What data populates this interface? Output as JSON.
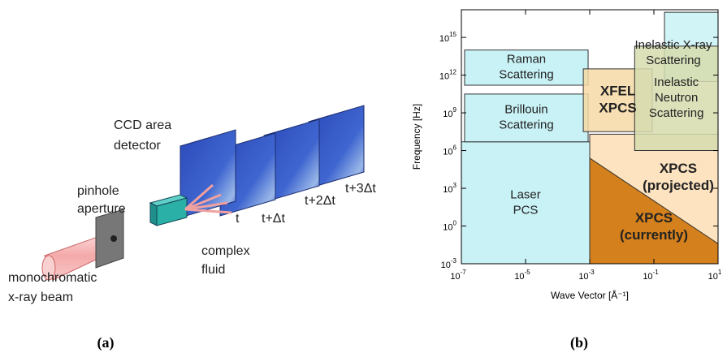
{
  "panel_a": {
    "labels": [
      "CCD area",
      "detector",
      "pinhole",
      "aperture",
      "monochromatic",
      "x-ray beam",
      "complex",
      "fluid",
      "t",
      "t+Δt",
      "t+2Δt",
      "t+3Δt"
    ],
    "caption": "(a)"
  },
  "panel_b": {
    "type": "log-region-map",
    "y_label": "Frequency [Hz]",
    "x_label": "Wave Vector [Å⁻¹]",
    "tick_base": "10",
    "xlim": [
      -7,
      1
    ],
    "ylim": [
      -3,
      17.2
    ],
    "xticks": [
      -7,
      -5,
      -3,
      -1,
      1
    ],
    "yticks": [
      -3,
      0,
      3,
      6,
      9,
      12,
      15
    ],
    "regions": [
      {
        "lines": [
          "Laser",
          "PCS"
        ],
        "bold": false,
        "color": "#c9f2f6",
        "points": [
          [
            -7,
            -3
          ],
          [
            -3,
            -3
          ],
          [
            -3,
            6.7
          ],
          [
            -7,
            6.7
          ]
        ]
      },
      {
        "lines": [
          "XPCS",
          "(projected)"
        ],
        "bold": true,
        "color": "#fde3c0",
        "points": [
          [
            -3,
            -3
          ],
          [
            1,
            -3
          ],
          [
            1,
            7.3
          ],
          [
            -3,
            7.3
          ]
        ]
      },
      {
        "lines": [
          "XPCS",
          "(currently)"
        ],
        "bold": true,
        "color": "#d4801c",
        "points": [
          [
            -3,
            -3
          ],
          [
            1,
            -3
          ],
          [
            1,
            -1.4
          ],
          [
            -3,
            5.4
          ]
        ]
      },
      {
        "lines": [
          "Raman",
          "Scattering"
        ],
        "bold": false,
        "color": "#c9f2f6",
        "points": [
          [
            -6.9,
            11.2
          ],
          [
            -3.05,
            11.2
          ],
          [
            -3.05,
            14
          ],
          [
            -6.9,
            14
          ]
        ]
      },
      {
        "lines": [
          "Brillouin",
          "Scattering"
        ],
        "bold": false,
        "color": "#c9f2f6",
        "points": [
          [
            -6.9,
            6.7
          ],
          [
            -3.05,
            6.7
          ],
          [
            -3.05,
            10.5
          ],
          [
            -6.9,
            10.5
          ]
        ]
      },
      {
        "lines": [
          "XFEL",
          "XPCS"
        ],
        "bold": true,
        "color": "#f6d9a6",
        "points": [
          [
            -3.2,
            7.5
          ],
          [
            -1.05,
            7.5
          ],
          [
            -1.05,
            12.5
          ],
          [
            -3.2,
            12.5
          ]
        ]
      },
      {
        "lines": [
          "Inelastic X-ray",
          "Scattering"
        ],
        "bold": false,
        "color": "#c9f2f6",
        "points": [
          [
            -0.67,
            11.5
          ],
          [
            1,
            11.5
          ],
          [
            1,
            17
          ],
          [
            -0.67,
            17
          ]
        ]
      },
      {
        "lines": [
          "Inelastic",
          "Neutron",
          "Scattering"
        ],
        "bold": false,
        "color": "#d6dcae",
        "points": [
          [
            -1.6,
            6
          ],
          [
            1,
            6
          ],
          [
            1,
            14.3
          ],
          [
            -1.6,
            14.3
          ]
        ]
      }
    ],
    "caption": "(b)"
  }
}
